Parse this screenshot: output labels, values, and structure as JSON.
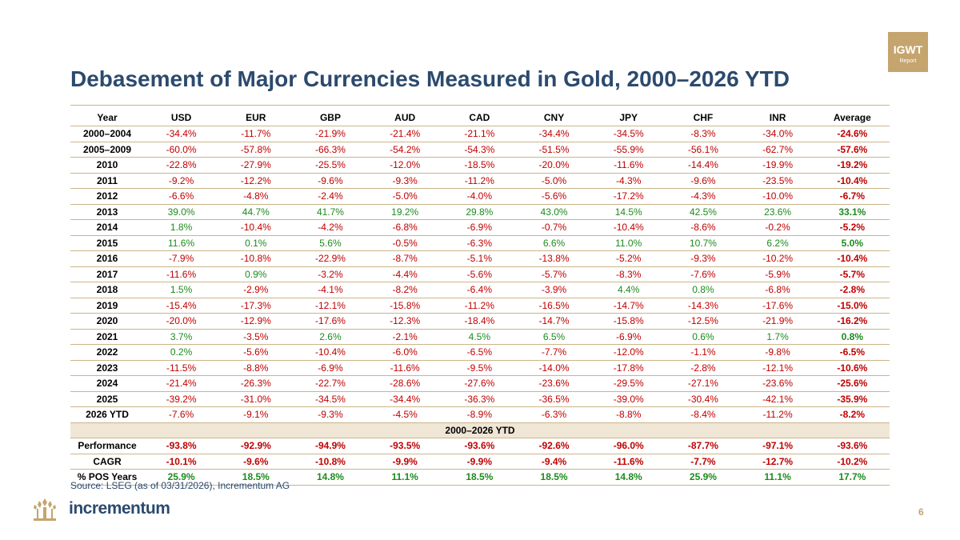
{
  "badge": {
    "line1": "IGWT",
    "line2": "Report"
  },
  "title": "Debasement of Major Currencies Measured in Gold, 2000–2026 YTD",
  "columns": [
    "Year",
    "USD",
    "EUR",
    "GBP",
    "AUD",
    "CAD",
    "CNY",
    "JPY",
    "CHF",
    "INR",
    "Average"
  ],
  "rows": [
    {
      "year": "2000–2004",
      "values": [
        "-34.4%",
        "-11.7%",
        "-21.9%",
        "-21.4%",
        "-21.1%",
        "-34.4%",
        "-34.5%",
        "-8.3%",
        "-34.0%",
        "-24.6%"
      ]
    },
    {
      "year": "2005–2009",
      "values": [
        "-60.0%",
        "-57.8%",
        "-66.3%",
        "-54.2%",
        "-54.3%",
        "-51.5%",
        "-55.9%",
        "-56.1%",
        "-62.7%",
        "-57.6%"
      ]
    },
    {
      "year": "2010",
      "values": [
        "-22.8%",
        "-27.9%",
        "-25.5%",
        "-12.0%",
        "-18.5%",
        "-20.0%",
        "-11.6%",
        "-14.4%",
        "-19.9%",
        "-19.2%"
      ]
    },
    {
      "year": "2011",
      "values": [
        "-9.2%",
        "-12.2%",
        "-9.6%",
        "-9.3%",
        "-11.2%",
        "-5.0%",
        "-4.3%",
        "-9.6%",
        "-23.5%",
        "-10.4%"
      ]
    },
    {
      "year": "2012",
      "values": [
        "-6.6%",
        "-4.8%",
        "-2.4%",
        "-5.0%",
        "-4.0%",
        "-5.6%",
        "-17.2%",
        "-4.3%",
        "-10.0%",
        "-6.7%"
      ]
    },
    {
      "year": "2013",
      "values": [
        "39.0%",
        "44.7%",
        "41.7%",
        "19.2%",
        "29.8%",
        "43.0%",
        "14.5%",
        "42.5%",
        "23.6%",
        "33.1%"
      ]
    },
    {
      "year": "2014",
      "values": [
        "1.8%",
        "-10.4%",
        "-4.2%",
        "-6.8%",
        "-6.9%",
        "-0.7%",
        "-10.4%",
        "-8.6%",
        "-0.2%",
        "-5.2%"
      ]
    },
    {
      "year": "2015",
      "values": [
        "11.6%",
        "0.1%",
        "5.6%",
        "-0.5%",
        "-6.3%",
        "6.6%",
        "11.0%",
        "10.7%",
        "6.2%",
        "5.0%"
      ]
    },
    {
      "year": "2016",
      "values": [
        "-7.9%",
        "-10.8%",
        "-22.9%",
        "-8.7%",
        "-5.1%",
        "-13.8%",
        "-5.2%",
        "-9.3%",
        "-10.2%",
        "-10.4%"
      ]
    },
    {
      "year": "2017",
      "values": [
        "-11.6%",
        "0.9%",
        "-3.2%",
        "-4.4%",
        "-5.6%",
        "-5.7%",
        "-8.3%",
        "-7.6%",
        "-5.9%",
        "-5.7%"
      ]
    },
    {
      "year": "2018",
      "values": [
        "1.5%",
        "-2.9%",
        "-4.1%",
        "-8.2%",
        "-6.4%",
        "-3.9%",
        "4.4%",
        "0.8%",
        "-6.8%",
        "-2.8%"
      ]
    },
    {
      "year": "2019",
      "values": [
        "-15.4%",
        "-17.3%",
        "-12.1%",
        "-15.8%",
        "-11.2%",
        "-16.5%",
        "-14.7%",
        "-14.3%",
        "-17.6%",
        "-15.0%"
      ]
    },
    {
      "year": "2020",
      "values": [
        "-20.0%",
        "-12.9%",
        "-17.6%",
        "-12.3%",
        "-18.4%",
        "-14.7%",
        "-15.8%",
        "-12.5%",
        "-21.9%",
        "-16.2%"
      ]
    },
    {
      "year": "2021",
      "values": [
        "3.7%",
        "-3.5%",
        "2.6%",
        "-2.1%",
        "4.5%",
        "6.5%",
        "-6.9%",
        "0.6%",
        "1.7%",
        "0.8%"
      ]
    },
    {
      "year": "2022",
      "values": [
        "0.2%",
        "-5.6%",
        "-10.4%",
        "-6.0%",
        "-6.5%",
        "-7.7%",
        "-12.0%",
        "-1.1%",
        "-9.8%",
        "-6.5%"
      ]
    },
    {
      "year": "2023",
      "values": [
        "-11.5%",
        "-8.8%",
        "-6.9%",
        "-11.6%",
        "-9.5%",
        "-14.0%",
        "-17.8%",
        "-2.8%",
        "-12.1%",
        "-10.6%"
      ]
    },
    {
      "year": "2024",
      "values": [
        "-21.4%",
        "-26.3%",
        "-22.7%",
        "-28.6%",
        "-27.6%",
        "-23.6%",
        "-29.5%",
        "-27.1%",
        "-23.6%",
        "-25.6%"
      ]
    },
    {
      "year": "2025",
      "values": [
        "-39.2%",
        "-31.0%",
        "-34.5%",
        "-34.4%",
        "-36.3%",
        "-36.5%",
        "-39.0%",
        "-30.4%",
        "-42.1%",
        "-35.9%"
      ]
    },
    {
      "year": "2026 YTD",
      "values": [
        "-7.6%",
        "-9.1%",
        "-9.3%",
        "-4.5%",
        "-8.9%",
        "-6.3%",
        "-8.8%",
        "-8.4%",
        "-11.2%",
        "-8.2%"
      ]
    }
  ],
  "section_label": "2000–2026 YTD",
  "summary": [
    {
      "label": "Performance",
      "values": [
        "-93.8%",
        "-92.9%",
        "-94.9%",
        "-93.5%",
        "-93.6%",
        "-92.6%",
        "-96.0%",
        "-87.7%",
        "-97.1%",
        "-93.6%"
      ]
    },
    {
      "label": "CAGR",
      "values": [
        "-10.1%",
        "-9.6%",
        "-10.8%",
        "-9.9%",
        "-9.9%",
        "-9.4%",
        "-11.6%",
        "-7.7%",
        "-12.7%",
        "-10.2%"
      ]
    },
    {
      "label": "% POS Years",
      "values": [
        "25.9%",
        "18.5%",
        "14.8%",
        "11.1%",
        "18.5%",
        "18.5%",
        "14.8%",
        "25.9%",
        "11.1%",
        "17.7%"
      ]
    }
  ],
  "source": "Source: LSEG (as of 03/31/2026), Incrementum AG",
  "brand": "incrementum",
  "page_number": "6",
  "colors": {
    "negative": "#c00000",
    "positive": "#1e8a1e",
    "accent": "#c5a46d",
    "title": "#2c4a6e"
  }
}
